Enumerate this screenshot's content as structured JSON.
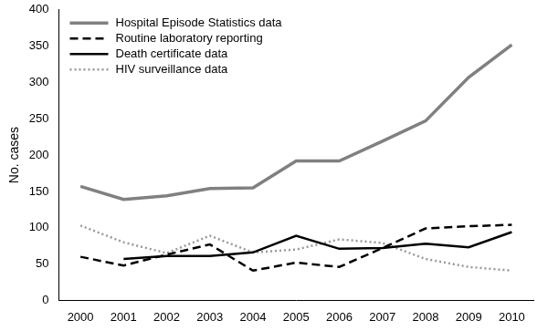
{
  "chart_data": {
    "type": "line",
    "y_label": "No. cases",
    "categories": [
      "2000",
      "2001",
      "2002",
      "2003",
      "2004",
      "2005",
      "2006",
      "2007",
      "2008",
      "2009",
      "2010"
    ],
    "series": [
      {
        "name": "Hospital Episode Statistics data",
        "color": "#808080",
        "line_style": "solid",
        "marker": "none",
        "values": [
          157,
          139,
          144,
          154,
          155,
          192,
          192,
          219,
          247,
          307,
          352
        ]
      },
      {
        "name": "Routine laboratory reporting",
        "color": "#000000",
        "line_style": "dashed",
        "marker": "none",
        "values": [
          60,
          48,
          63,
          77,
          41,
          52,
          46,
          72,
          99,
          102,
          104
        ]
      },
      {
        "name": "Death certificate data",
        "color": "#000000",
        "line_style": "solid",
        "marker": "none",
        "values": [
          null,
          57,
          61,
          61,
          66,
          89,
          71,
          72,
          78,
          73,
          94
        ]
      },
      {
        "name": "HIV surveillance data",
        "color": "#999999",
        "line_style": "dotted",
        "marker": "none",
        "values": [
          103,
          80,
          65,
          89,
          66,
          70,
          84,
          79,
          57,
          46,
          41
        ]
      }
    ],
    "ylim": [
      0,
      400
    ],
    "yticks": [
      0,
      50,
      100,
      150,
      200,
      250,
      300,
      350,
      400
    ],
    "grid": false,
    "legend": "top-left"
  }
}
